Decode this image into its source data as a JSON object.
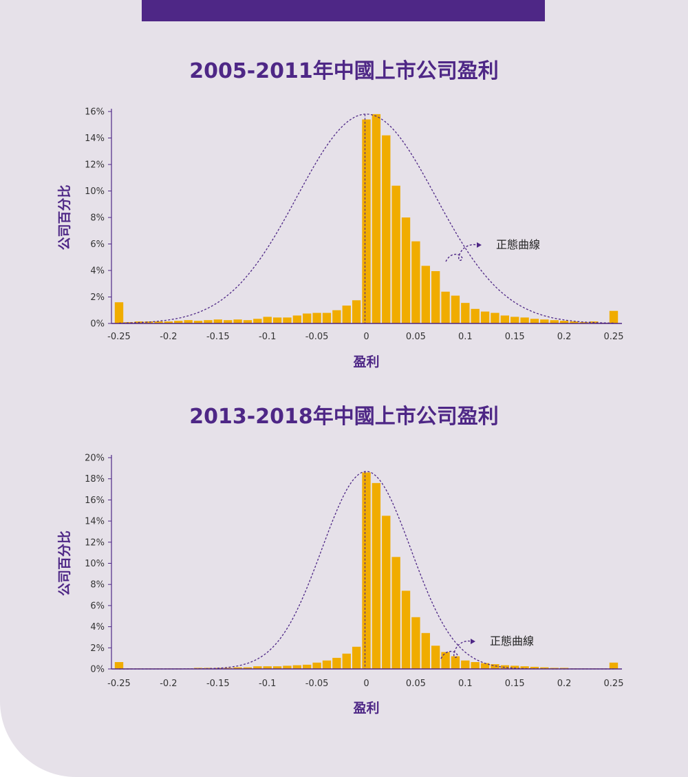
{
  "colors": {
    "bar": "#f0ac00",
    "purple": "#4e2786",
    "background": "#e6e1e9",
    "text": "#333333"
  },
  "chart_data": [
    {
      "type": "bar",
      "title": "2005-2011年中國上市公司盈利",
      "xlabel": "盈利",
      "ylabel": "公司百分比",
      "xlim": [
        -0.25,
        0.25
      ],
      "ylim": [
        0,
        16
      ],
      "xticks": [
        -0.25,
        -0.2,
        -0.15,
        -0.1,
        -0.05,
        0,
        0.05,
        0.1,
        0.15,
        0.2,
        0.25
      ],
      "xtick_labels": [
        "-0.25",
        "-0.2",
        "-0.15",
        "-0.1",
        "-0.05",
        "0",
        "0.05",
        "0.1",
        "0.15",
        "0.2",
        "0.25"
      ],
      "yticks": [
        0,
        2,
        4,
        6,
        8,
        10,
        12,
        14,
        16
      ],
      "ytick_labels": [
        "0%",
        "2%",
        "4%",
        "6%",
        "8%",
        "10%",
        "12%",
        "14%",
        "16%"
      ],
      "bin_width": 0.01,
      "bins": [
        {
          "x": -0.25,
          "value": 1.6
        },
        {
          "x": -0.24,
          "value": 0.1
        },
        {
          "x": -0.23,
          "value": 0.15
        },
        {
          "x": -0.22,
          "value": 0.15
        },
        {
          "x": -0.21,
          "value": 0.15
        },
        {
          "x": -0.2,
          "value": 0.15
        },
        {
          "x": -0.19,
          "value": 0.2
        },
        {
          "x": -0.18,
          "value": 0.25
        },
        {
          "x": -0.17,
          "value": 0.2
        },
        {
          "x": -0.16,
          "value": 0.25
        },
        {
          "x": -0.15,
          "value": 0.3
        },
        {
          "x": -0.14,
          "value": 0.25
        },
        {
          "x": -0.13,
          "value": 0.3
        },
        {
          "x": -0.12,
          "value": 0.25
        },
        {
          "x": -0.11,
          "value": 0.35
        },
        {
          "x": -0.1,
          "value": 0.5
        },
        {
          "x": -0.09,
          "value": 0.45
        },
        {
          "x": -0.08,
          "value": 0.45
        },
        {
          "x": -0.07,
          "value": 0.6
        },
        {
          "x": -0.06,
          "value": 0.75
        },
        {
          "x": -0.05,
          "value": 0.8
        },
        {
          "x": -0.04,
          "value": 0.8
        },
        {
          "x": -0.03,
          "value": 1.0
        },
        {
          "x": -0.02,
          "value": 1.35
        },
        {
          "x": -0.01,
          "value": 1.75
        },
        {
          "x": 0.0,
          "value": 15.4
        },
        {
          "x": 0.01,
          "value": 15.8
        },
        {
          "x": 0.02,
          "value": 14.2
        },
        {
          "x": 0.03,
          "value": 10.4
        },
        {
          "x": 0.04,
          "value": 8.0
        },
        {
          "x": 0.05,
          "value": 6.2
        },
        {
          "x": 0.06,
          "value": 4.35
        },
        {
          "x": 0.07,
          "value": 3.95
        },
        {
          "x": 0.08,
          "value": 2.4
        },
        {
          "x": 0.09,
          "value": 2.1
        },
        {
          "x": 0.1,
          "value": 1.55
        },
        {
          "x": 0.11,
          "value": 1.1
        },
        {
          "x": 0.12,
          "value": 0.9
        },
        {
          "x": 0.13,
          "value": 0.8
        },
        {
          "x": 0.14,
          "value": 0.6
        },
        {
          "x": 0.15,
          "value": 0.5
        },
        {
          "x": 0.16,
          "value": 0.45
        },
        {
          "x": 0.17,
          "value": 0.35
        },
        {
          "x": 0.18,
          "value": 0.3
        },
        {
          "x": 0.19,
          "value": 0.25
        },
        {
          "x": 0.2,
          "value": 0.2
        },
        {
          "x": 0.21,
          "value": 0.15
        },
        {
          "x": 0.22,
          "value": 0.1
        },
        {
          "x": 0.23,
          "value": 0.15
        },
        {
          "x": 0.24,
          "value": 0.05
        },
        {
          "x": 0.25,
          "value": 0.95
        }
      ],
      "normal_curve": {
        "label": "正態曲線",
        "peak": 15.8,
        "sigma": 0.07
      }
    },
    {
      "type": "bar",
      "title": "2013-2018年中國上市公司盈利",
      "xlabel": "盈利",
      "ylabel": "公司百分比",
      "xlim": [
        -0.25,
        0.25
      ],
      "ylim": [
        0,
        20
      ],
      "xticks": [
        -0.25,
        -0.2,
        -0.15,
        -0.1,
        -0.05,
        0,
        0.05,
        0.1,
        0.15,
        0.2,
        0.25
      ],
      "xtick_labels": [
        "-0.25",
        "-0.2",
        "-0.15",
        "-0.1",
        "-0.05",
        "0",
        "0.05",
        "0.1",
        "0.15",
        "0.2",
        "0.25"
      ],
      "yticks": [
        0,
        2,
        4,
        6,
        8,
        10,
        12,
        14,
        16,
        18,
        20
      ],
      "ytick_labels": [
        "0%",
        "2%",
        "4%",
        "6%",
        "8%",
        "10%",
        "12%",
        "14%",
        "16%",
        "18%",
        "20%"
      ],
      "bin_width": 0.01,
      "bins": [
        {
          "x": -0.25,
          "value": 0.65
        },
        {
          "x": -0.24,
          "value": 0.05
        },
        {
          "x": -0.23,
          "value": 0.05
        },
        {
          "x": -0.22,
          "value": 0.05
        },
        {
          "x": -0.21,
          "value": 0.05
        },
        {
          "x": -0.2,
          "value": 0.05
        },
        {
          "x": -0.19,
          "value": 0.05
        },
        {
          "x": -0.18,
          "value": 0.05
        },
        {
          "x": -0.17,
          "value": 0.1
        },
        {
          "x": -0.16,
          "value": 0.1
        },
        {
          "x": -0.15,
          "value": 0.1
        },
        {
          "x": -0.14,
          "value": 0.1
        },
        {
          "x": -0.13,
          "value": 0.15
        },
        {
          "x": -0.12,
          "value": 0.15
        },
        {
          "x": -0.11,
          "value": 0.25
        },
        {
          "x": -0.1,
          "value": 0.25
        },
        {
          "x": -0.09,
          "value": 0.25
        },
        {
          "x": -0.08,
          "value": 0.3
        },
        {
          "x": -0.07,
          "value": 0.35
        },
        {
          "x": -0.06,
          "value": 0.4
        },
        {
          "x": -0.05,
          "value": 0.6
        },
        {
          "x": -0.04,
          "value": 0.8
        },
        {
          "x": -0.03,
          "value": 1.05
        },
        {
          "x": -0.02,
          "value": 1.45
        },
        {
          "x": -0.01,
          "value": 2.1
        },
        {
          "x": 0.0,
          "value": 18.6
        },
        {
          "x": 0.01,
          "value": 17.6
        },
        {
          "x": 0.02,
          "value": 14.5
        },
        {
          "x": 0.03,
          "value": 10.6
        },
        {
          "x": 0.04,
          "value": 7.4
        },
        {
          "x": 0.05,
          "value": 4.9
        },
        {
          "x": 0.06,
          "value": 3.4
        },
        {
          "x": 0.07,
          "value": 2.2
        },
        {
          "x": 0.08,
          "value": 1.6
        },
        {
          "x": 0.09,
          "value": 1.2
        },
        {
          "x": 0.1,
          "value": 0.8
        },
        {
          "x": 0.11,
          "value": 0.65
        },
        {
          "x": 0.12,
          "value": 0.55
        },
        {
          "x": 0.13,
          "value": 0.45
        },
        {
          "x": 0.14,
          "value": 0.35
        },
        {
          "x": 0.15,
          "value": 0.3
        },
        {
          "x": 0.16,
          "value": 0.25
        },
        {
          "x": 0.17,
          "value": 0.2
        },
        {
          "x": 0.18,
          "value": 0.15
        },
        {
          "x": 0.19,
          "value": 0.1
        },
        {
          "x": 0.2,
          "value": 0.1
        },
        {
          "x": 0.21,
          "value": 0.05
        },
        {
          "x": 0.22,
          "value": 0.05
        },
        {
          "x": 0.23,
          "value": 0.05
        },
        {
          "x": 0.24,
          "value": 0.05
        },
        {
          "x": 0.25,
          "value": 0.6
        }
      ],
      "normal_curve": {
        "label": "正態曲線",
        "peak": 18.7,
        "sigma": 0.045
      }
    }
  ]
}
